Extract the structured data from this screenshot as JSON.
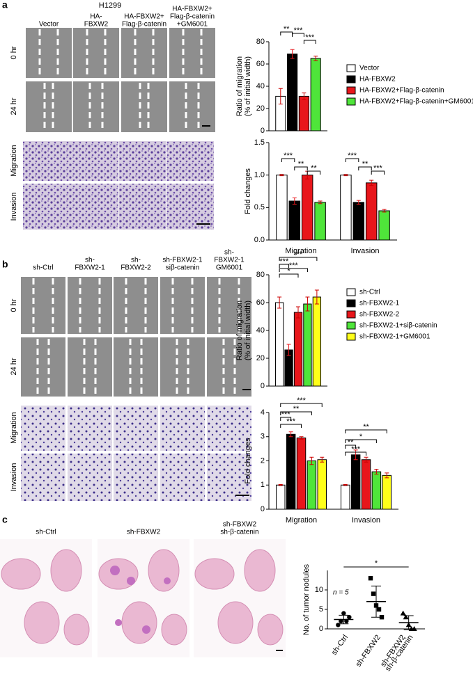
{
  "panels": [
    {
      "label": "a",
      "title": "H1299",
      "columns": [
        [
          "Vector"
        ],
        [
          "HA-",
          "FBXW2"
        ],
        [
          "HA-FBXW2+",
          "Flag-β-catenin"
        ],
        [
          "HA-FBXW2+",
          "Flag-β-catenin",
          "+GM6001"
        ]
      ],
      "rows": [
        "0 hr",
        "24 hr",
        "Migration",
        "Invasion"
      ]
    },
    {
      "label": "b",
      "columns": [
        [
          "sh-Ctrl"
        ],
        [
          "sh-",
          "FBXW2-1"
        ],
        [
          "sh-",
          "FBXW2-2"
        ],
        [
          "sh-FBXW2-1",
          "siβ-catenin"
        ],
        [
          "sh-",
          "FBXW2-1",
          "GM6001"
        ]
      ],
      "rows": [
        "0 hr",
        "24 hr",
        "Migration",
        "Invasion"
      ]
    },
    {
      "label": "c",
      "columns": [
        [
          "sh-Ctrl"
        ],
        [
          "sh-FBXW2"
        ],
        [
          "sh-FBXW2",
          "sh-β-catenin"
        ]
      ]
    }
  ],
  "chart_data": [
    {
      "type": "bar",
      "y_label": [
        "Ratio of migration",
        "(% of initial width)"
      ],
      "categories": [
        null
      ],
      "ylim": [
        0,
        80
      ],
      "yticks": [
        0,
        20,
        40,
        60,
        80
      ],
      "series": [
        {
          "name": "Vector",
          "color": "#ffffff",
          "values": [
            31
          ],
          "errors": [
            7
          ]
        },
        {
          "name": "HA-FBXW2",
          "color": "#000000",
          "values": [
            69
          ],
          "errors": [
            4
          ]
        },
        {
          "name": "HA-FBXW2+Flag-β-catenin",
          "color": "#e8161b",
          "values": [
            31
          ],
          "errors": [
            3
          ]
        },
        {
          "name": "HA-FBXW2+Flag-β-catenin+GM6001",
          "color": "#4fe53a",
          "values": [
            65
          ],
          "errors": [
            2
          ]
        }
      ],
      "annotations": [
        "**",
        "***",
        "***"
      ]
    },
    {
      "type": "bar",
      "y_label": [
        "Fold changes"
      ],
      "categories": [
        "Migration",
        "Invasion"
      ],
      "ylim": [
        0,
        1.5
      ],
      "yticks": [
        {
          "value": 0,
          "label": "0.0"
        },
        0.5,
        {
          "value": 1,
          "label": "1.0"
        },
        1.5
      ],
      "series": [
        {
          "color": "#ffffff",
          "values": [
            1.0,
            1.0
          ],
          "errors": [
            0.01,
            0.01
          ]
        },
        {
          "color": "#000000",
          "values": [
            0.6,
            0.58
          ],
          "errors": [
            0.05,
            0.03
          ]
        },
        {
          "color": "#e8161b",
          "values": [
            1.0,
            0.88
          ],
          "errors": [
            0.06,
            0.04
          ]
        },
        {
          "color": "#4fe53a",
          "values": [
            0.58,
            0.45
          ],
          "errors": [
            0.02,
            0.02
          ]
        }
      ],
      "annotations": [
        "***",
        "**",
        "**",
        "***",
        "**",
        "***"
      ]
    },
    {
      "type": "bar",
      "y_label": [
        "Ratio of migration",
        "(% of initial width)"
      ],
      "categories": [
        null
      ],
      "ylim": [
        0,
        80
      ],
      "yticks": [
        0,
        20,
        40,
        60,
        80
      ],
      "series": [
        {
          "name": "sh-Ctrl",
          "color": "#ffffff",
          "values": [
            60
          ],
          "errors": [
            4
          ]
        },
        {
          "name": "sh-FBXW2-1",
          "color": "#000000",
          "values": [
            26
          ],
          "errors": [
            4
          ]
        },
        {
          "name": "sh-FBXW2-2",
          "color": "#e8161b",
          "values": [
            53
          ],
          "errors": [
            4
          ]
        },
        {
          "name": "sh-FBXW2-1+siβ-catenin",
          "color": "#4fe53a",
          "values": [
            59
          ],
          "errors": [
            5
          ]
        },
        {
          "name": "sh-FBXW2-1+GM6001",
          "color": "#ffff1a",
          "values": [
            64
          ],
          "errors": [
            5
          ]
        }
      ],
      "annotations": [
        "***",
        "*",
        "***",
        "***"
      ]
    },
    {
      "type": "bar",
      "y_label": [
        "Fold changes"
      ],
      "categories": [
        "Migration",
        "Invasion"
      ],
      "ylim": [
        0,
        4
      ],
      "yticks": [
        0,
        1,
        2,
        3,
        4
      ],
      "series": [
        {
          "color": "#ffffff",
          "values": [
            1.0,
            1.0
          ],
          "errors": [
            0.02,
            0.02
          ]
        },
        {
          "color": "#000000",
          "values": [
            3.1,
            2.25
          ],
          "errors": [
            0.1,
            0.2
          ]
        },
        {
          "color": "#e8161b",
          "values": [
            2.95,
            2.05
          ],
          "errors": [
            0.05,
            0.1
          ]
        },
        {
          "color": "#4fe53a",
          "values": [
            2.0,
            1.55
          ],
          "errors": [
            0.15,
            0.1
          ]
        },
        {
          "color": "#ffff1a",
          "values": [
            2.05,
            1.4
          ],
          "errors": [
            0.1,
            0.1
          ]
        }
      ],
      "annotations": [
        "***",
        "***",
        "**",
        "***",
        "**",
        "***",
        "*",
        "**"
      ]
    },
    {
      "type": "dot",
      "y_label": [
        "No. of tumor nodules"
      ],
      "categories": [
        [
          "sh-Ctrl"
        ],
        [
          "sh-FBXW2"
        ],
        [
          "sh-FBXW2",
          "sh-β-catenin"
        ]
      ],
      "ylim": [
        0,
        15
      ],
      "yticks": [
        0,
        5,
        10
      ],
      "markers": [
        "circle",
        "square",
        "triangle"
      ],
      "values": [
        [
          1,
          2,
          4,
          2,
          3
        ],
        [
          13,
          9,
          6,
          5,
          3
        ],
        [
          4,
          3,
          1,
          0,
          0
        ]
      ],
      "means": [
        2.4,
        7,
        1.6
      ],
      "sds": [
        1.1,
        4,
        1.8
      ],
      "note": "n = 5",
      "annotations": [
        "*"
      ]
    }
  ]
}
